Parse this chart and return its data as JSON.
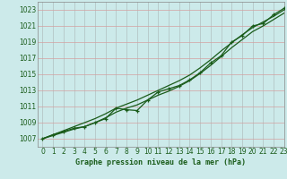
{
  "title": "Graphe pression niveau de la mer (hPa)",
  "background_color": "#cceaea",
  "grid_color": "#b0c8c8",
  "line_color": "#1a5c1a",
  "xlim": [
    -0.5,
    23
  ],
  "ylim": [
    1006.0,
    1024.0
  ],
  "yticks": [
    1007,
    1009,
    1011,
    1013,
    1015,
    1017,
    1019,
    1021,
    1023
  ],
  "xticks": [
    0,
    1,
    2,
    3,
    4,
    5,
    6,
    7,
    8,
    9,
    10,
    11,
    12,
    13,
    14,
    15,
    16,
    17,
    18,
    19,
    20,
    21,
    22,
    23
  ],
  "x": [
    0,
    1,
    2,
    3,
    4,
    5,
    6,
    7,
    8,
    9,
    10,
    11,
    12,
    13,
    14,
    15,
    16,
    17,
    18,
    19,
    20,
    21,
    22,
    23
  ],
  "y_main": [
    1007.0,
    1007.5,
    1007.9,
    1008.3,
    1008.5,
    1009.0,
    1009.5,
    1010.8,
    1010.6,
    1010.5,
    1011.8,
    1012.8,
    1013.2,
    1013.6,
    1014.3,
    1015.2,
    1016.4,
    1017.3,
    1019.0,
    1019.8,
    1021.0,
    1021.3,
    1022.4,
    1023.2
  ],
  "y_low": [
    1007.0,
    1007.4,
    1007.8,
    1008.2,
    1008.5,
    1009.0,
    1009.6,
    1010.3,
    1010.8,
    1011.2,
    1011.8,
    1012.4,
    1012.9,
    1013.5,
    1014.2,
    1015.1,
    1016.1,
    1017.2,
    1018.3,
    1019.3,
    1020.3,
    1021.0,
    1021.8,
    1022.6
  ],
  "y_high": [
    1007.0,
    1007.5,
    1008.0,
    1008.5,
    1009.0,
    1009.5,
    1010.1,
    1010.8,
    1011.3,
    1011.8,
    1012.4,
    1013.0,
    1013.6,
    1014.2,
    1014.9,
    1015.8,
    1016.8,
    1017.9,
    1018.9,
    1019.9,
    1020.8,
    1021.5,
    1022.2,
    1023.0
  ],
  "xlabel_fontsize": 6.0,
  "tick_fontsize": 5.5
}
